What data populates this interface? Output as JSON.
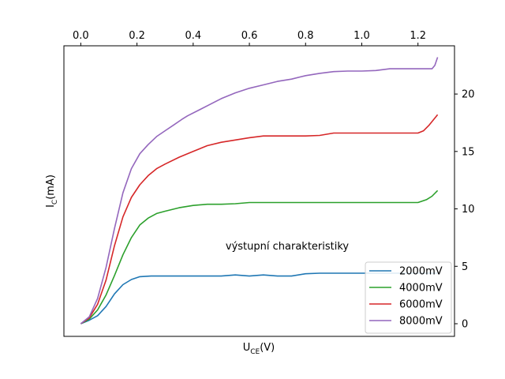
{
  "chart_data": {
    "type": "line",
    "title": "",
    "xlabel": "",
    "ylabel": "",
    "xlabel_main": "U",
    "xlabel_sub": "CE",
    "xlabel_unit": "(V)",
    "ylabel_main": "I",
    "ylabel_sub": "C",
    "ylabel_unit": "(mA)",
    "annotation": "výstupní charakteristiky",
    "x_axis_position": "top",
    "y_axis_position": "right",
    "xlim": [
      -0.06,
      1.33
    ],
    "ylim": [
      -1.1,
      24.2
    ],
    "x_ticks": [
      0.0,
      0.2,
      0.4,
      0.6,
      0.8,
      1.0,
      1.2
    ],
    "x_tick_labels": [
      "0.0",
      "0.2",
      "0.4",
      "0.6",
      "0.8",
      "1.0",
      "1.2"
    ],
    "y_ticks": [
      0,
      5,
      10,
      15,
      20
    ],
    "y_tick_labels": [
      "0",
      "5",
      "10",
      "15",
      "20"
    ],
    "grid": false,
    "legend_position": "bottom-right",
    "series": [
      {
        "name": "2000mV",
        "color": "#1f77b4",
        "x": [
          0.0,
          0.03,
          0.06,
          0.09,
          0.12,
          0.15,
          0.18,
          0.21,
          0.25,
          0.3,
          0.4,
          0.5,
          0.55,
          0.6,
          0.65,
          0.7,
          0.75,
          0.8,
          0.85,
          0.9,
          1.0,
          1.1,
          1.2,
          1.24,
          1.27
        ],
        "y": [
          0.0,
          0.3,
          0.7,
          1.5,
          2.6,
          3.4,
          3.85,
          4.1,
          4.15,
          4.15,
          4.15,
          4.15,
          4.25,
          4.15,
          4.25,
          4.15,
          4.15,
          4.35,
          4.4,
          4.4,
          4.4,
          4.4,
          4.4,
          4.4,
          4.4
        ]
      },
      {
        "name": "4000mV",
        "color": "#2ca02c",
        "x": [
          0.0,
          0.03,
          0.06,
          0.09,
          0.12,
          0.15,
          0.18,
          0.21,
          0.24,
          0.27,
          0.3,
          0.35,
          0.4,
          0.45,
          0.5,
          0.55,
          0.6,
          0.7,
          0.8,
          0.9,
          1.0,
          1.1,
          1.2,
          1.23,
          1.25,
          1.27
        ],
        "y": [
          0.0,
          0.4,
          1.2,
          2.5,
          4.2,
          6.0,
          7.5,
          8.6,
          9.2,
          9.6,
          9.8,
          10.1,
          10.3,
          10.4,
          10.4,
          10.45,
          10.55,
          10.55,
          10.55,
          10.55,
          10.55,
          10.55,
          10.55,
          10.8,
          11.1,
          11.6
        ]
      },
      {
        "name": "6000mV",
        "color": "#d62728",
        "x": [
          0.0,
          0.03,
          0.06,
          0.09,
          0.12,
          0.15,
          0.18,
          0.21,
          0.24,
          0.27,
          0.3,
          0.35,
          0.4,
          0.45,
          0.5,
          0.55,
          0.6,
          0.65,
          0.7,
          0.8,
          0.85,
          0.9,
          1.0,
          1.1,
          1.2,
          1.22,
          1.24,
          1.27
        ],
        "y": [
          0.0,
          0.5,
          1.7,
          3.8,
          6.8,
          9.3,
          11.0,
          12.1,
          12.9,
          13.5,
          13.9,
          14.5,
          15.0,
          15.5,
          15.8,
          16.0,
          16.2,
          16.35,
          16.35,
          16.35,
          16.4,
          16.6,
          16.6,
          16.6,
          16.6,
          16.8,
          17.3,
          18.2
        ]
      },
      {
        "name": "8000mV",
        "color": "#9467bd",
        "x": [
          0.0,
          0.03,
          0.06,
          0.09,
          0.12,
          0.15,
          0.18,
          0.21,
          0.24,
          0.27,
          0.3,
          0.33,
          0.36,
          0.38,
          0.42,
          0.46,
          0.5,
          0.55,
          0.6,
          0.65,
          0.7,
          0.75,
          0.8,
          0.85,
          0.9,
          0.95,
          1.0,
          1.05,
          1.1,
          1.15,
          1.2,
          1.25,
          1.26,
          1.27
        ],
        "y": [
          0.0,
          0.6,
          2.2,
          4.9,
          8.3,
          11.4,
          13.5,
          14.8,
          15.6,
          16.3,
          16.8,
          17.3,
          17.8,
          18.1,
          18.6,
          19.1,
          19.6,
          20.1,
          20.5,
          20.8,
          21.1,
          21.3,
          21.6,
          21.8,
          21.95,
          22.0,
          22.0,
          22.05,
          22.2,
          22.2,
          22.2,
          22.2,
          22.5,
          23.2
        ]
      }
    ]
  }
}
